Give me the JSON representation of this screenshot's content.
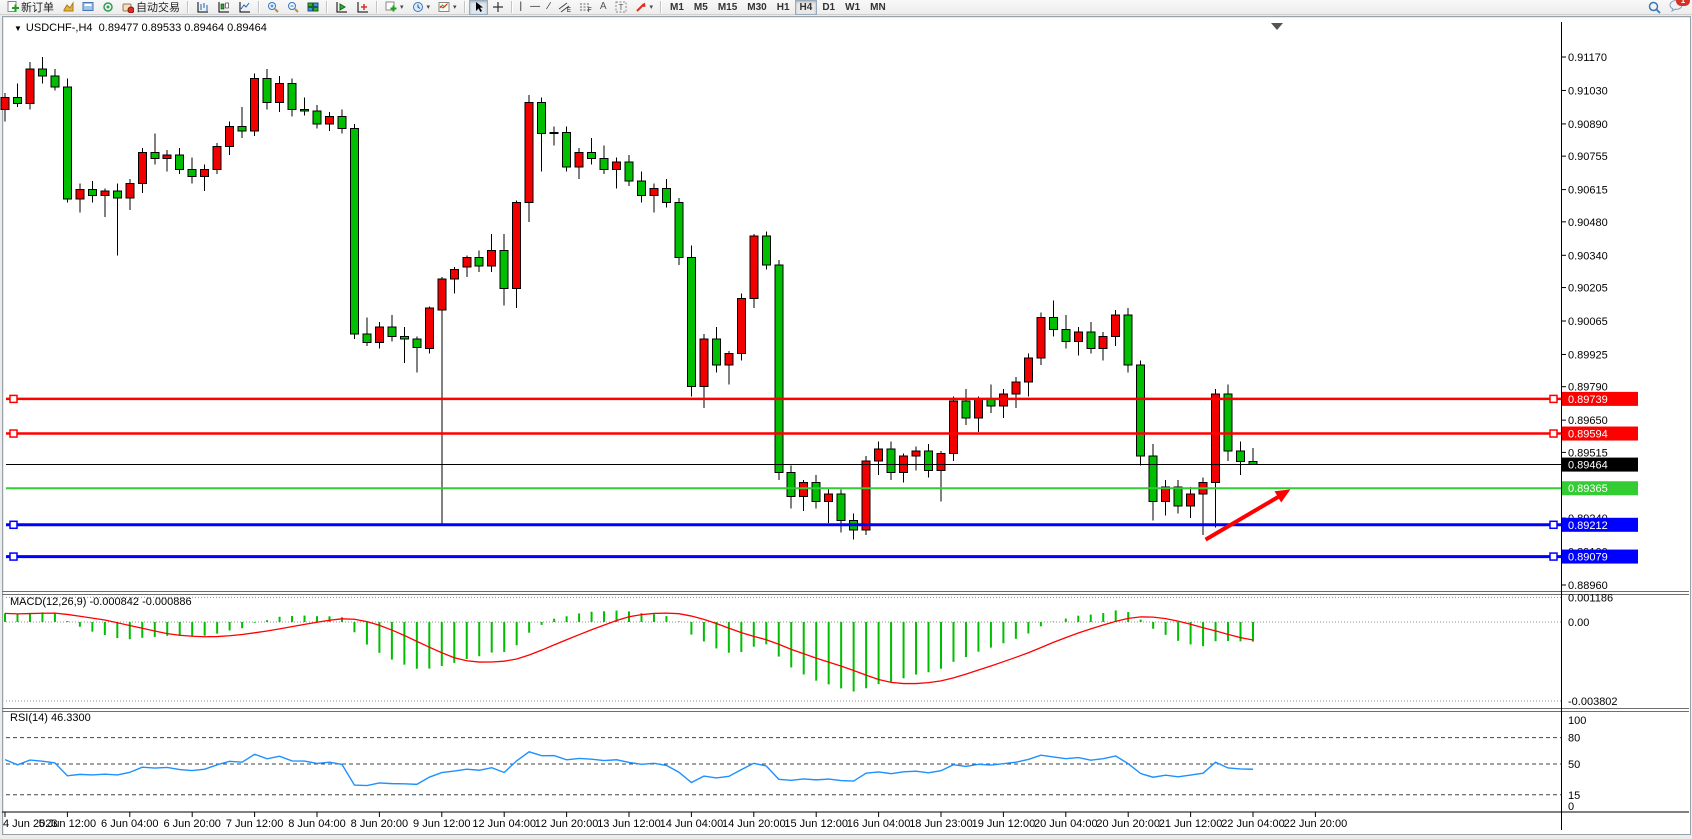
{
  "toolbar": {
    "new_order_label": "新订单",
    "autotrade_label": "自动交易",
    "timeframes": [
      "M1",
      "M5",
      "M15",
      "M30",
      "H1",
      "H4",
      "D1",
      "W1",
      "MN"
    ],
    "active_timeframe": "H4",
    "notification_count": "1"
  },
  "chart": {
    "title": "USDCHF-,H4",
    "ohlc_line": "0.89477 0.89533 0.89464 0.89464"
  },
  "chart_data": [
    {
      "type": "candlestick",
      "symbol": "USDCHF-",
      "timeframe": "H4",
      "up_color": "#F20000",
      "down_color": "#00BE00",
      "wick_color": "#000000",
      "ylim": [
        0.8896,
        0.9117
      ],
      "y_ticks": [
        0.9117,
        0.9103,
        0.9089,
        0.90755,
        0.90615,
        0.9048,
        0.9034,
        0.90205,
        0.90065,
        0.89925,
        0.8979,
        0.8965,
        0.89515,
        0.89375,
        0.8924,
        0.891,
        0.8896
      ],
      "x_labels": [
        "4 Jun 2023",
        "5 Jun 12:00",
        "6 Jun 04:00",
        "6 Jun 20:00",
        "7 Jun 12:00",
        "8 Jun 04:00",
        "8 Jun 20:00",
        "9 Jun 12:00",
        "12 Jun 04:00",
        "12 Jun 20:00",
        "13 Jun 12:00",
        "14 Jun 04:00",
        "14 Jun 20:00",
        "15 Jun 12:00",
        "16 Jun 04:00",
        "18 Jun 23:00",
        "19 Jun 12:00",
        "20 Jun 04:00",
        "20 Jun 20:00",
        "21 Jun 12:00",
        "22 Jun 04:00",
        "22 Jun 20:00"
      ],
      "label_every": 5,
      "candles": [
        [
          0.9095,
          0.9102,
          0.909,
          0.91
        ],
        [
          0.91,
          0.9106,
          0.9096,
          0.90975
        ],
        [
          0.90975,
          0.9115,
          0.9095,
          0.9112
        ],
        [
          0.9112,
          0.9117,
          0.9106,
          0.9109
        ],
        [
          0.9109,
          0.9112,
          0.9103,
          0.91045
        ],
        [
          0.91045,
          0.9108,
          0.9056,
          0.90575
        ],
        [
          0.90575,
          0.9064,
          0.9052,
          0.90615
        ],
        [
          0.90615,
          0.9065,
          0.9056,
          0.9059
        ],
        [
          0.9059,
          0.9062,
          0.905,
          0.9061
        ],
        [
          0.9061,
          0.9064,
          0.9034,
          0.9058
        ],
        [
          0.9058,
          0.9066,
          0.9053,
          0.9064
        ],
        [
          0.9064,
          0.9079,
          0.906,
          0.9077
        ],
        [
          0.9077,
          0.9085,
          0.9072,
          0.90745
        ],
        [
          0.90745,
          0.9078,
          0.9069,
          0.9076
        ],
        [
          0.9076,
          0.9079,
          0.9068,
          0.907
        ],
        [
          0.907,
          0.9075,
          0.9064,
          0.9067
        ],
        [
          0.9067,
          0.9072,
          0.9061,
          0.907
        ],
        [
          0.907,
          0.9081,
          0.9068,
          0.90795
        ],
        [
          0.90795,
          0.909,
          0.9076,
          0.9088
        ],
        [
          0.9088,
          0.9096,
          0.9083,
          0.9086
        ],
        [
          0.9086,
          0.911,
          0.9084,
          0.9108
        ],
        [
          0.9108,
          0.9112,
          0.9095,
          0.9098
        ],
        [
          0.9098,
          0.9109,
          0.9094,
          0.9106
        ],
        [
          0.9106,
          0.9108,
          0.9092,
          0.9095
        ],
        [
          0.9095,
          0.91,
          0.90925,
          0.90945
        ],
        [
          0.90945,
          0.9097,
          0.9087,
          0.9089
        ],
        [
          0.9089,
          0.9094,
          0.9086,
          0.9092
        ],
        [
          0.9092,
          0.9095,
          0.9085,
          0.9087
        ],
        [
          0.9087,
          0.9089,
          0.8999,
          0.9001
        ],
        [
          0.9001,
          0.9008,
          0.8996,
          0.89975
        ],
        [
          0.89975,
          0.9006,
          0.8995,
          0.9004
        ],
        [
          0.9004,
          0.9009,
          0.8998,
          0.9
        ],
        [
          0.9,
          0.9004,
          0.8989,
          0.8999
        ],
        [
          0.8999,
          0.9,
          0.8985,
          0.89955
        ],
        [
          0.8995,
          0.90125,
          0.8993,
          0.9012
        ],
        [
          0.9011,
          0.9025,
          0.8921,
          0.9024
        ],
        [
          0.9024,
          0.9029,
          0.9018,
          0.9028
        ],
        [
          0.9029,
          0.9034,
          0.9025,
          0.9033
        ],
        [
          0.9033,
          0.9036,
          0.9027,
          0.90295
        ],
        [
          0.90295,
          0.9043,
          0.9027,
          0.9036
        ],
        [
          0.9036,
          0.9043,
          0.9013,
          0.902
        ],
        [
          0.902,
          0.9057,
          0.9012,
          0.9056
        ],
        [
          0.9056,
          0.9101,
          0.9048,
          0.9098
        ],
        [
          0.9098,
          0.91,
          0.9069,
          0.9085
        ],
        [
          0.9085,
          0.9088,
          0.908,
          0.90855
        ],
        [
          0.90855,
          0.9088,
          0.9069,
          0.9071
        ],
        [
          0.9071,
          0.9079,
          0.9066,
          0.9077
        ],
        [
          0.9077,
          0.9083,
          0.9072,
          0.90745
        ],
        [
          0.90745,
          0.908,
          0.9068,
          0.907
        ],
        [
          0.907,
          0.9075,
          0.9062,
          0.9073
        ],
        [
          0.9073,
          0.9076,
          0.9063,
          0.9065
        ],
        [
          0.9065,
          0.9069,
          0.9056,
          0.9059
        ],
        [
          0.9059,
          0.9064,
          0.9052,
          0.9062
        ],
        [
          0.9062,
          0.9066,
          0.9054,
          0.9056
        ],
        [
          0.9056,
          0.9058,
          0.903,
          0.9033
        ],
        [
          0.9033,
          0.9038,
          0.8975,
          0.8979
        ],
        [
          0.8979,
          0.9001,
          0.897,
          0.8999
        ],
        [
          0.8999,
          0.9004,
          0.8985,
          0.8988
        ],
        [
          0.8988,
          0.8994,
          0.898,
          0.8993
        ],
        [
          0.8993,
          0.9018,
          0.899,
          0.9016
        ],
        [
          0.9016,
          0.9043,
          0.9012,
          0.9042
        ],
        [
          0.9042,
          0.9044,
          0.9028,
          0.903
        ],
        [
          0.903,
          0.9032,
          0.894,
          0.8943
        ],
        [
          0.8943,
          0.8946,
          0.8928,
          0.8933
        ],
        [
          0.8933,
          0.894,
          0.8927,
          0.8939
        ],
        [
          0.8939,
          0.8942,
          0.8928,
          0.8931
        ],
        [
          0.8931,
          0.8936,
          0.8922,
          0.8934
        ],
        [
          0.8934,
          0.8936,
          0.8918,
          0.8923
        ],
        [
          0.8923,
          0.8926,
          0.8915,
          0.8919
        ],
        [
          0.8919,
          0.895,
          0.8917,
          0.8948
        ],
        [
          0.8948,
          0.8956,
          0.8942,
          0.8953
        ],
        [
          0.8953,
          0.8956,
          0.894,
          0.8943
        ],
        [
          0.8943,
          0.8951,
          0.8939,
          0.895
        ],
        [
          0.895,
          0.8954,
          0.8944,
          0.8952
        ],
        [
          0.8952,
          0.8955,
          0.8941,
          0.8944
        ],
        [
          0.8944,
          0.8952,
          0.8931,
          0.8951
        ],
        [
          0.8951,
          0.8975,
          0.8948,
          0.8973
        ],
        [
          0.8973,
          0.8978,
          0.8963,
          0.8966
        ],
        [
          0.8966,
          0.8975,
          0.896,
          0.8974
        ],
        [
          0.8974,
          0.898,
          0.8968,
          0.8971
        ],
        [
          0.8971,
          0.8978,
          0.8966,
          0.8976
        ],
        [
          0.8976,
          0.8983,
          0.897,
          0.8981
        ],
        [
          0.8981,
          0.8993,
          0.8975,
          0.8991
        ],
        [
          0.8991,
          0.901,
          0.8988,
          0.9008
        ],
        [
          0.9008,
          0.9015,
          0.9,
          0.9003
        ],
        [
          0.9003,
          0.9009,
          0.8995,
          0.8998
        ],
        [
          0.8998,
          0.9004,
          0.8992,
          0.9002
        ],
        [
          0.9002,
          0.9006,
          0.8993,
          0.8995
        ],
        [
          0.8995,
          0.9002,
          0.899,
          0.9
        ],
        [
          0.9,
          0.9011,
          0.8996,
          0.9009
        ],
        [
          0.9009,
          0.9012,
          0.8985,
          0.8988
        ],
        [
          0.8988,
          0.899,
          0.8946,
          0.895
        ],
        [
          0.895,
          0.8955,
          0.8923,
          0.8931
        ],
        [
          0.8931,
          0.894,
          0.8925,
          0.8937
        ],
        [
          0.8937,
          0.894,
          0.8926,
          0.8929
        ],
        [
          0.8929,
          0.8937,
          0.8924,
          0.8934
        ],
        [
          0.8934,
          0.8941,
          0.8917,
          0.8939
        ],
        [
          0.8939,
          0.8978,
          0.892,
          0.8976
        ],
        [
          0.8976,
          0.898,
          0.8948,
          0.8952
        ],
        [
          0.8952,
          0.8956,
          0.8942,
          0.89477
        ],
        [
          0.89477,
          0.89533,
          0.89464,
          0.89464
        ]
      ],
      "hlines": [
        {
          "price": 0.89739,
          "label": "0.89739",
          "color": "#FF0000",
          "width": 2.5,
          "handles": true
        },
        {
          "price": 0.89594,
          "label": "0.89594",
          "color": "#FF0000",
          "width": 2.5,
          "handles": true
        },
        {
          "price": 0.89365,
          "label": "0.89365",
          "color": "#33CC33",
          "width": 2,
          "handles": false
        },
        {
          "price": 0.89212,
          "label": "0.89212",
          "color": "#0000FF",
          "width": 3,
          "handles": true
        },
        {
          "price": 0.89079,
          "label": "0.89079",
          "color": "#0000FF",
          "width": 3,
          "handles": true
        }
      ],
      "current_price": {
        "value": 0.89464,
        "label": "0.89464",
        "color": "#000000"
      },
      "annotation_arrow": {
        "x1_bar": 96.2,
        "y1_price": 0.8915,
        "x2_bar": 103,
        "y2_price": 0.8936,
        "color": "#FF0000"
      }
    },
    {
      "type": "macd",
      "label": "MACD(12,26,9) -0.000842 -0.000886",
      "params": [
        12,
        26,
        9
      ],
      "last_values": {
        "macd": "-0.000842",
        "signal": "-0.000886"
      },
      "y_tick_labels": [
        "0.001186",
        "0.00",
        "-0.003802"
      ],
      "y_tick_values": [
        0.001186,
        0,
        -0.003802
      ],
      "histogram_color": "#00BE00",
      "signal_color": "#FF0000",
      "derived_from": "candles closes, EMA12-EMA26 with SMA9 signal"
    },
    {
      "type": "rsi",
      "label": "RSI(14) 46.3300",
      "period": 14,
      "last_value": "46.3300",
      "levels": [
        100,
        80,
        50,
        15,
        0
      ],
      "dashed_levels": [
        80,
        50,
        15
      ],
      "line_color": "#1E90FF",
      "range": [
        0,
        100
      ],
      "derived_from": "candles closes, Wilder RSI(14)"
    }
  ]
}
